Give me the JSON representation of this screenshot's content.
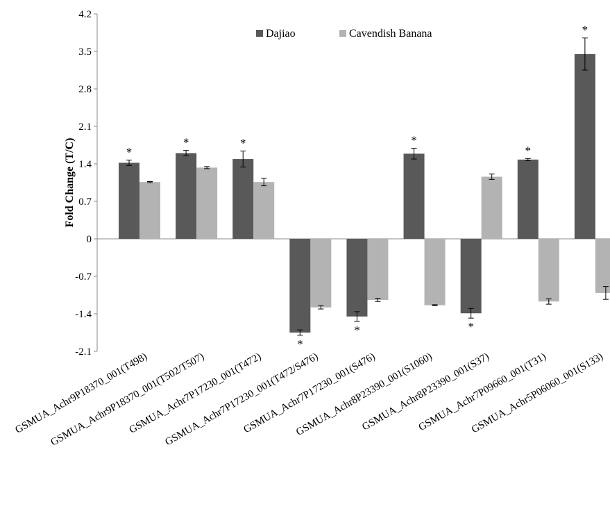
{
  "chart_data": {
    "type": "bar",
    "ylabel": "Fold Change (T/C)",
    "ylim": [
      -2.1,
      4.2
    ],
    "yticks": [
      "4.2",
      "3.5",
      "2.8",
      "2.1",
      "1.4",
      "0.7",
      "0",
      "-0.7",
      "-1.4",
      "-2.1"
    ],
    "grid": false,
    "legend_position": "top",
    "categories": [
      "GSMUA_Achr9P18370_001(T498)",
      "GSMUA_Achr9P18370_001(T502/T507)",
      "GSMUA_Achr7P17230_001(T472)",
      "GSMUA_Achr7P17230_001(T472/S476)",
      "GSMUA_Achr7P17230_001(S476)",
      "GSMUA_Achr8P23390_001(S1060)",
      "GSMUA_Achr8P23390_001(S37)",
      "GSMUA_Achr7P09660_001(T31)",
      "GSMUA_Achr5P06060_001(S133)"
    ],
    "series": [
      {
        "name": "Dajiao",
        "color": "#595959",
        "values": [
          1.42,
          1.6,
          1.49,
          -1.75,
          -1.45,
          1.59,
          -1.39,
          1.48,
          3.45
        ],
        "errors": [
          0.05,
          0.05,
          0.15,
          0.05,
          0.09,
          0.1,
          0.09,
          0.02,
          0.3
        ],
        "significance": [
          "*",
          "*",
          "*",
          "*",
          "*",
          "*",
          "*",
          "*",
          "*"
        ]
      },
      {
        "name": "Cavendish Banana",
        "color": "#b3b3b3",
        "values": [
          1.06,
          1.33,
          1.06,
          -1.28,
          -1.14,
          -1.24,
          1.16,
          -1.17,
          -1.01
        ],
        "errors": [
          0.01,
          0.02,
          0.07,
          0.03,
          0.03,
          0.01,
          0.05,
          0.05,
          0.12
        ],
        "significance": [
          "",
          "",
          "",
          "",
          "",
          "",
          "",
          "",
          ""
        ]
      }
    ]
  }
}
